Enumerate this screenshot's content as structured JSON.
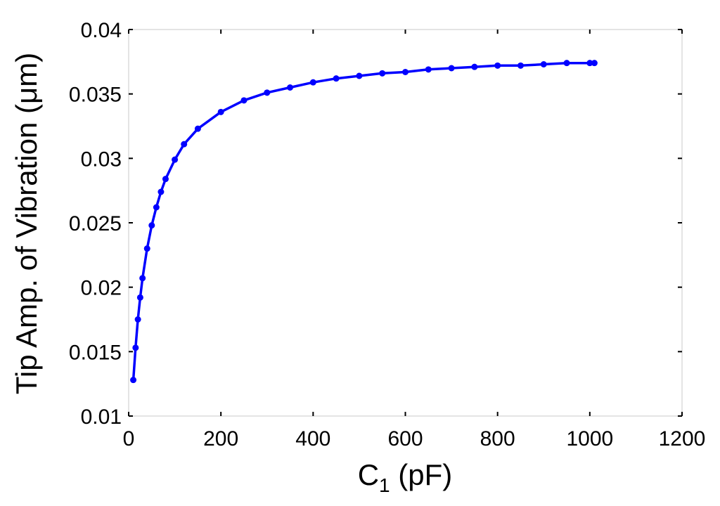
{
  "chart_data": {
    "type": "line",
    "title": "",
    "xlabel_main": "C",
    "xlabel_sub": "1",
    "xlabel_unit": " (pF)",
    "ylabel": "Tip Amp. of Vibration (μm)",
    "xlim": [
      0,
      1200
    ],
    "ylim": [
      0.01,
      0.04
    ],
    "xticks": [
      0,
      200,
      400,
      600,
      800,
      1000,
      1200
    ],
    "xtick_labels": [
      "0",
      "200",
      "400",
      "600",
      "800",
      "1000",
      "1200"
    ],
    "yticks": [
      0.01,
      0.015,
      0.02,
      0.025,
      0.03,
      0.035,
      0.04
    ],
    "ytick_labels": [
      "0.01",
      "0.015",
      "0.02",
      "0.025",
      "0.03",
      "0.035",
      "0.04"
    ],
    "grid": false,
    "marker": "circle",
    "series": [
      {
        "color": "#0000ff",
        "x": [
          10,
          15,
          20,
          25,
          30,
          40,
          50,
          60,
          70,
          80,
          100,
          120,
          150,
          200,
          250,
          300,
          350,
          400,
          450,
          500,
          550,
          600,
          650,
          700,
          750,
          800,
          850,
          900,
          950,
          1000,
          1010
        ],
        "y": [
          0.0128,
          0.0153,
          0.0175,
          0.0192,
          0.0207,
          0.023,
          0.0248,
          0.0262,
          0.0274,
          0.0284,
          0.0299,
          0.0311,
          0.0323,
          0.0336,
          0.0345,
          0.0351,
          0.0355,
          0.0359,
          0.0362,
          0.0364,
          0.0366,
          0.0367,
          0.0369,
          0.037,
          0.0371,
          0.0372,
          0.0372,
          0.0373,
          0.0374,
          0.0374,
          0.0374
        ]
      }
    ]
  }
}
